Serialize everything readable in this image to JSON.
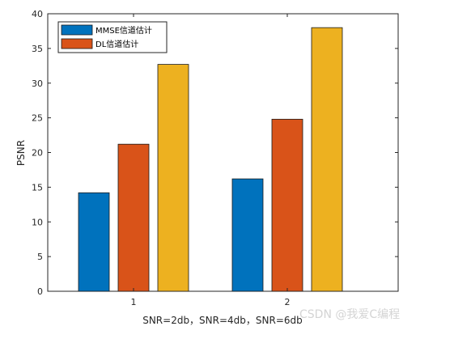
{
  "chart_data": {
    "type": "bar",
    "categories": [
      "1",
      "2"
    ],
    "series": [
      {
        "name": "MMSE信道估计",
        "color": "#0072BD",
        "values": [
          14.2,
          16.2
        ]
      },
      {
        "name": "DL信道估计",
        "color": "#D95319",
        "values": [
          21.2,
          24.8
        ]
      },
      {
        "name": "",
        "color": "#EDB120",
        "values": [
          32.7,
          38.0
        ]
      }
    ],
    "xlabel": "SNR=2db，SNR=4db，SNR=6db",
    "ylabel": "PSNR",
    "ylim": [
      0,
      40
    ],
    "yticks": [
      0,
      5,
      10,
      15,
      20,
      25,
      30,
      35,
      40
    ],
    "grid": false,
    "legend_position": "top-left"
  },
  "watermark": "CSDN @我爱C编程"
}
